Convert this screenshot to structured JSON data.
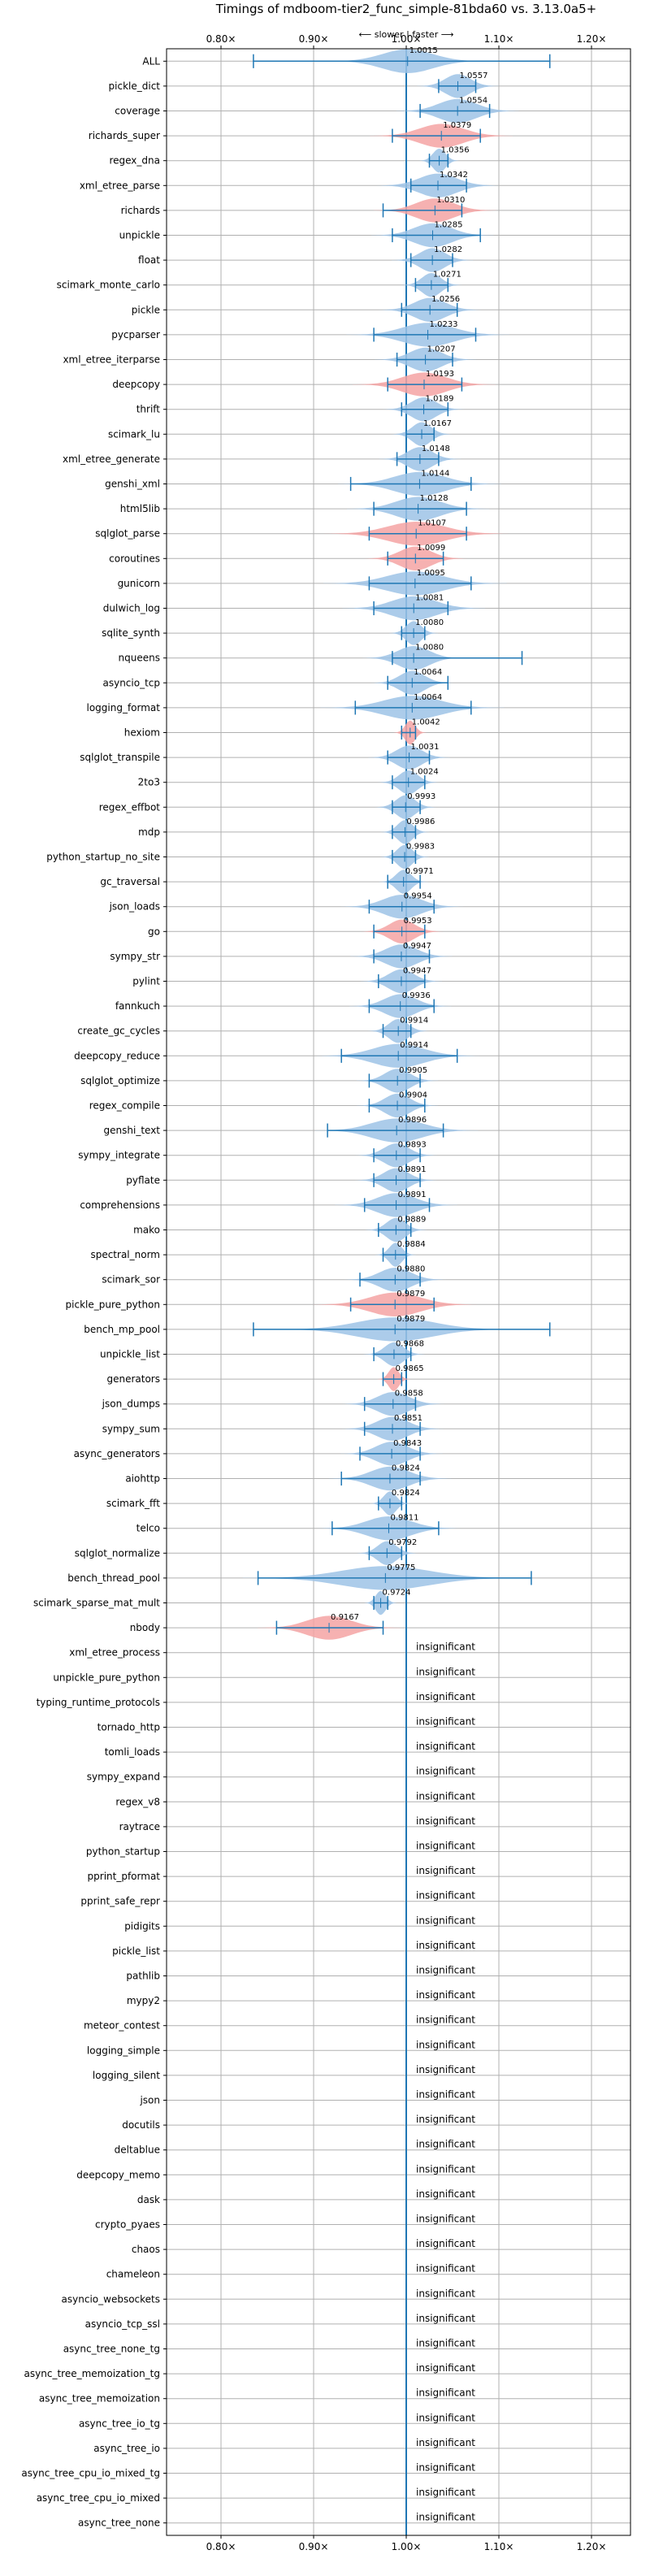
{
  "chart_data": {
    "type": "violin",
    "title": "Timings of mdboom-tier2_func_simple-81bda60 vs. 3.13.0a5+",
    "direction_label": "⟵ slower | faster ⟶",
    "xlim": [
      0.75,
      1.25
    ],
    "xticks": [
      0.8,
      0.9,
      1.0,
      1.1,
      1.2
    ],
    "xtick_labels": [
      "0.80×",
      "0.90×",
      "1.00×",
      "1.10×",
      "1.20×"
    ],
    "reference_line": 1.0,
    "grid": true,
    "colors": {
      "faster": "#9dc3e6",
      "slower": "#f4a3a3",
      "errorbar": "#1f77b4",
      "refline": "#1f77b4",
      "grid": "#b0b0b0"
    },
    "insignificant_text": "insignificant",
    "benchmarks": [
      {
        "name": "ALL",
        "mean": 1.0015,
        "label": "1.0015",
        "lo": 0.835,
        "hi": 1.155,
        "sig": true,
        "spread": 0.04
      },
      {
        "name": "pickle_dict",
        "mean": 1.0557,
        "label": "1.0557",
        "lo": 1.035,
        "hi": 1.075,
        "sig": true,
        "spread": 0.02
      },
      {
        "name": "coverage",
        "mean": 1.0554,
        "label": "1.0554",
        "lo": 1.015,
        "hi": 1.09,
        "sig": true,
        "spread": 0.03
      },
      {
        "name": "richards_super",
        "mean": 1.0379,
        "label": "1.0379",
        "lo": 0.985,
        "hi": 1.08,
        "sig": true,
        "spread": 0.035,
        "color": "slower"
      },
      {
        "name": "regex_dna",
        "mean": 1.0356,
        "label": "1.0356",
        "lo": 1.025,
        "hi": 1.045,
        "sig": true,
        "spread": 0.01
      },
      {
        "name": "xml_etree_parse",
        "mean": 1.0342,
        "label": "1.0342",
        "lo": 1.005,
        "hi": 1.065,
        "sig": true,
        "spread": 0.03
      },
      {
        "name": "richards",
        "mean": 1.031,
        "label": "1.0310",
        "lo": 0.975,
        "hi": 1.06,
        "sig": true,
        "spread": 0.03,
        "color": "slower"
      },
      {
        "name": "unpickle",
        "mean": 1.0285,
        "label": "1.0285",
        "lo": 0.985,
        "hi": 1.08,
        "sig": true,
        "spread": 0.03
      },
      {
        "name": "float",
        "mean": 1.0282,
        "label": "1.0282",
        "lo": 1.005,
        "hi": 1.05,
        "sig": true,
        "spread": 0.02
      },
      {
        "name": "scimark_monte_carlo",
        "mean": 1.0271,
        "label": "1.0271",
        "lo": 1.01,
        "hi": 1.045,
        "sig": true,
        "spread": 0.015
      },
      {
        "name": "pickle",
        "mean": 1.0256,
        "label": "1.0256",
        "lo": 0.995,
        "hi": 1.055,
        "sig": true,
        "spread": 0.025
      },
      {
        "name": "pycparser",
        "mean": 1.0233,
        "label": "1.0233",
        "lo": 0.965,
        "hi": 1.075,
        "sig": true,
        "spread": 0.04
      },
      {
        "name": "xml_etree_iterparse",
        "mean": 1.0207,
        "label": "1.0207",
        "lo": 0.99,
        "hi": 1.05,
        "sig": true,
        "spread": 0.025
      },
      {
        "name": "deepcopy",
        "mean": 1.0193,
        "label": "1.0193",
        "lo": 0.98,
        "hi": 1.06,
        "sig": true,
        "spread": 0.035,
        "color": "slower"
      },
      {
        "name": "thrift",
        "mean": 1.0189,
        "label": "1.0189",
        "lo": 0.995,
        "hi": 1.045,
        "sig": true,
        "spread": 0.02
      },
      {
        "name": "scimark_lu",
        "mean": 1.0167,
        "label": "1.0167",
        "lo": 1.0,
        "hi": 1.03,
        "sig": true,
        "spread": 0.015
      },
      {
        "name": "xml_etree_generate",
        "mean": 1.0148,
        "label": "1.0148",
        "lo": 0.99,
        "hi": 1.035,
        "sig": true,
        "spread": 0.02
      },
      {
        "name": "genshi_xml",
        "mean": 1.0144,
        "label": "1.0144",
        "lo": 0.94,
        "hi": 1.07,
        "sig": true,
        "spread": 0.04
      },
      {
        "name": "html5lib",
        "mean": 1.0128,
        "label": "1.0128",
        "lo": 0.965,
        "hi": 1.065,
        "sig": true,
        "spread": 0.035
      },
      {
        "name": "sqlglot_parse",
        "mean": 1.0107,
        "label": "1.0107",
        "lo": 0.96,
        "hi": 1.065,
        "sig": true,
        "spread": 0.045,
        "color": "slower"
      },
      {
        "name": "coroutines",
        "mean": 1.0099,
        "label": "1.0099",
        "lo": 0.98,
        "hi": 1.04,
        "sig": true,
        "spread": 0.025,
        "color": "slower"
      },
      {
        "name": "gunicorn",
        "mean": 1.0095,
        "label": "1.0095",
        "lo": 0.96,
        "hi": 1.07,
        "sig": true,
        "spread": 0.045
      },
      {
        "name": "dulwich_log",
        "mean": 1.0081,
        "label": "1.0081",
        "lo": 0.965,
        "hi": 1.045,
        "sig": true,
        "spread": 0.035
      },
      {
        "name": "sqlite_synth",
        "mean": 1.008,
        "label": "1.0080",
        "lo": 0.995,
        "hi": 1.02,
        "sig": true,
        "spread": 0.012
      },
      {
        "name": "nqueens",
        "mean": 1.008,
        "label": "1.0080",
        "lo": 0.985,
        "hi": 1.125,
        "sig": true,
        "spread": 0.025
      },
      {
        "name": "asyncio_tcp",
        "mean": 1.0064,
        "label": "1.0064",
        "lo": 0.98,
        "hi": 1.045,
        "sig": true,
        "spread": 0.02
      },
      {
        "name": "logging_format",
        "mean": 1.0064,
        "label": "1.0064",
        "lo": 0.945,
        "hi": 1.07,
        "sig": true,
        "spread": 0.045
      },
      {
        "name": "hexiom",
        "mean": 1.0042,
        "label": "1.0042",
        "lo": 0.995,
        "hi": 1.01,
        "sig": true,
        "spread": 0.008,
        "color": "slower"
      },
      {
        "name": "sqlglot_transpile",
        "mean": 1.0031,
        "label": "1.0031",
        "lo": 0.98,
        "hi": 1.025,
        "sig": true,
        "spread": 0.02
      },
      {
        "name": "2to3",
        "mean": 1.0024,
        "label": "1.0024",
        "lo": 0.985,
        "hi": 1.02,
        "sig": true,
        "spread": 0.015
      },
      {
        "name": "regex_effbot",
        "mean": 0.9993,
        "label": "0.9993",
        "lo": 0.985,
        "hi": 1.015,
        "sig": true,
        "spread": 0.015
      },
      {
        "name": "mdp",
        "mean": 0.9986,
        "label": "0.9986",
        "lo": 0.985,
        "hi": 1.01,
        "sig": true,
        "spread": 0.012
      },
      {
        "name": "python_startup_no_site",
        "mean": 0.9983,
        "label": "0.9983",
        "lo": 0.985,
        "hi": 1.01,
        "sig": true,
        "spread": 0.012
      },
      {
        "name": "gc_traversal",
        "mean": 0.9971,
        "label": "0.9971",
        "lo": 0.98,
        "hi": 1.015,
        "sig": true,
        "spread": 0.012
      },
      {
        "name": "json_loads",
        "mean": 0.9954,
        "label": "0.9954",
        "lo": 0.96,
        "hi": 1.03,
        "sig": true,
        "spread": 0.03
      },
      {
        "name": "go",
        "mean": 0.9953,
        "label": "0.9953",
        "lo": 0.965,
        "hi": 1.02,
        "sig": true,
        "spread": 0.02,
        "color": "slower"
      },
      {
        "name": "sympy_str",
        "mean": 0.9947,
        "label": "0.9947",
        "lo": 0.965,
        "hi": 1.025,
        "sig": true,
        "spread": 0.025
      },
      {
        "name": "pylint",
        "mean": 0.9947,
        "label": "0.9947",
        "lo": 0.97,
        "hi": 1.02,
        "sig": true,
        "spread": 0.02
      },
      {
        "name": "fannkuch",
        "mean": 0.9936,
        "label": "0.9936",
        "lo": 0.96,
        "hi": 1.03,
        "sig": true,
        "spread": 0.025
      },
      {
        "name": "create_gc_cycles",
        "mean": 0.9914,
        "label": "0.9914",
        "lo": 0.975,
        "hi": 1.005,
        "sig": true,
        "spread": 0.015
      },
      {
        "name": "deepcopy_reduce",
        "mean": 0.9914,
        "label": "0.9914",
        "lo": 0.93,
        "hi": 1.055,
        "sig": true,
        "spread": 0.04
      },
      {
        "name": "sqlglot_optimize",
        "mean": 0.9905,
        "label": "0.9905",
        "lo": 0.96,
        "hi": 1.015,
        "sig": true,
        "spread": 0.02
      },
      {
        "name": "regex_compile",
        "mean": 0.9904,
        "label": "0.9904",
        "lo": 0.96,
        "hi": 1.02,
        "sig": true,
        "spread": 0.02
      },
      {
        "name": "genshi_text",
        "mean": 0.9896,
        "label": "0.9896",
        "lo": 0.915,
        "hi": 1.04,
        "sig": true,
        "spread": 0.04
      },
      {
        "name": "sympy_integrate",
        "mean": 0.9893,
        "label": "0.9893",
        "lo": 0.965,
        "hi": 1.015,
        "sig": true,
        "spread": 0.02
      },
      {
        "name": "pyflate",
        "mean": 0.9891,
        "label": "0.9891",
        "lo": 0.965,
        "hi": 1.015,
        "sig": true,
        "spread": 0.02
      },
      {
        "name": "comprehensions",
        "mean": 0.9891,
        "label": "0.9891",
        "lo": 0.955,
        "hi": 1.025,
        "sig": true,
        "spread": 0.03
      },
      {
        "name": "mako",
        "mean": 0.9889,
        "label": "0.9889",
        "lo": 0.97,
        "hi": 1.005,
        "sig": true,
        "spread": 0.015
      },
      {
        "name": "spectral_norm",
        "mean": 0.9884,
        "label": "0.9884",
        "lo": 0.975,
        "hi": 1.0,
        "sig": true,
        "spread": 0.01
      },
      {
        "name": "scimark_sor",
        "mean": 0.988,
        "label": "0.9880",
        "lo": 0.95,
        "hi": 1.015,
        "sig": true,
        "spread": 0.025
      },
      {
        "name": "pickle_pure_python",
        "mean": 0.9879,
        "label": "0.9879",
        "lo": 0.94,
        "hi": 1.03,
        "sig": true,
        "spread": 0.04,
        "color": "slower"
      },
      {
        "name": "bench_mp_pool",
        "mean": 0.9879,
        "label": "0.9879",
        "lo": 0.835,
        "hi": 1.155,
        "sig": true,
        "spread": 0.06
      },
      {
        "name": "unpickle_list",
        "mean": 0.9868,
        "label": "0.9868",
        "lo": 0.965,
        "hi": 1.005,
        "sig": true,
        "spread": 0.015
      },
      {
        "name": "generators",
        "mean": 0.9865,
        "label": "0.9865",
        "lo": 0.975,
        "hi": 0.995,
        "sig": true,
        "spread": 0.008,
        "color": "slower"
      },
      {
        "name": "json_dumps",
        "mean": 0.9858,
        "label": "0.9858",
        "lo": 0.955,
        "hi": 1.01,
        "sig": true,
        "spread": 0.025
      },
      {
        "name": "sympy_sum",
        "mean": 0.9851,
        "label": "0.9851",
        "lo": 0.955,
        "hi": 1.015,
        "sig": true,
        "spread": 0.025
      },
      {
        "name": "async_generators",
        "mean": 0.9843,
        "label": "0.9843",
        "lo": 0.95,
        "hi": 1.015,
        "sig": true,
        "spread": 0.025
      },
      {
        "name": "aiohttp",
        "mean": 0.9824,
        "label": "0.9824",
        "lo": 0.93,
        "hi": 1.015,
        "sig": true,
        "spread": 0.03
      },
      {
        "name": "scimark_fft",
        "mean": 0.9824,
        "label": "0.9824",
        "lo": 0.97,
        "hi": 0.995,
        "sig": true,
        "spread": 0.01
      },
      {
        "name": "telco",
        "mean": 0.9811,
        "label": "0.9811",
        "lo": 0.92,
        "hi": 1.035,
        "sig": true,
        "spread": 0.035
      },
      {
        "name": "sqlglot_normalize",
        "mean": 0.9792,
        "label": "0.9792",
        "lo": 0.96,
        "hi": 0.995,
        "sig": true,
        "spread": 0.015
      },
      {
        "name": "bench_thread_pool",
        "mean": 0.9775,
        "label": "0.9775",
        "lo": 0.84,
        "hi": 1.135,
        "sig": true,
        "spread": 0.07
      },
      {
        "name": "scimark_sparse_mat_mult",
        "mean": 0.9724,
        "label": "0.9724",
        "lo": 0.965,
        "hi": 0.98,
        "sig": true,
        "spread": 0.008
      },
      {
        "name": "nbody",
        "mean": 0.9167,
        "label": "0.9167",
        "lo": 0.86,
        "hi": 0.975,
        "sig": true,
        "spread": 0.035,
        "color": "slower"
      },
      {
        "name": "xml_etree_process",
        "sig": false
      },
      {
        "name": "unpickle_pure_python",
        "sig": false
      },
      {
        "name": "typing_runtime_protocols",
        "sig": false
      },
      {
        "name": "tornado_http",
        "sig": false
      },
      {
        "name": "tomli_loads",
        "sig": false
      },
      {
        "name": "sympy_expand",
        "sig": false
      },
      {
        "name": "regex_v8",
        "sig": false
      },
      {
        "name": "raytrace",
        "sig": false
      },
      {
        "name": "python_startup",
        "sig": false
      },
      {
        "name": "pprint_pformat",
        "sig": false
      },
      {
        "name": "pprint_safe_repr",
        "sig": false
      },
      {
        "name": "pidigits",
        "sig": false
      },
      {
        "name": "pickle_list",
        "sig": false
      },
      {
        "name": "pathlib",
        "sig": false
      },
      {
        "name": "mypy2",
        "sig": false
      },
      {
        "name": "meteor_contest",
        "sig": false
      },
      {
        "name": "logging_simple",
        "sig": false
      },
      {
        "name": "logging_silent",
        "sig": false
      },
      {
        "name": "json",
        "sig": false
      },
      {
        "name": "docutils",
        "sig": false
      },
      {
        "name": "deltablue",
        "sig": false
      },
      {
        "name": "deepcopy_memo",
        "sig": false
      },
      {
        "name": "dask",
        "sig": false
      },
      {
        "name": "crypto_pyaes",
        "sig": false
      },
      {
        "name": "chaos",
        "sig": false
      },
      {
        "name": "chameleon",
        "sig": false
      },
      {
        "name": "asyncio_websockets",
        "sig": false
      },
      {
        "name": "asyncio_tcp_ssl",
        "sig": false
      },
      {
        "name": "async_tree_none_tg",
        "sig": false
      },
      {
        "name": "async_tree_memoization_tg",
        "sig": false
      },
      {
        "name": "async_tree_memoization",
        "sig": false
      },
      {
        "name": "async_tree_io_tg",
        "sig": false
      },
      {
        "name": "async_tree_io",
        "sig": false
      },
      {
        "name": "async_tree_cpu_io_mixed_tg",
        "sig": false
      },
      {
        "name": "async_tree_cpu_io_mixed",
        "sig": false
      },
      {
        "name": "async_tree_none",
        "sig": false
      }
    ]
  }
}
